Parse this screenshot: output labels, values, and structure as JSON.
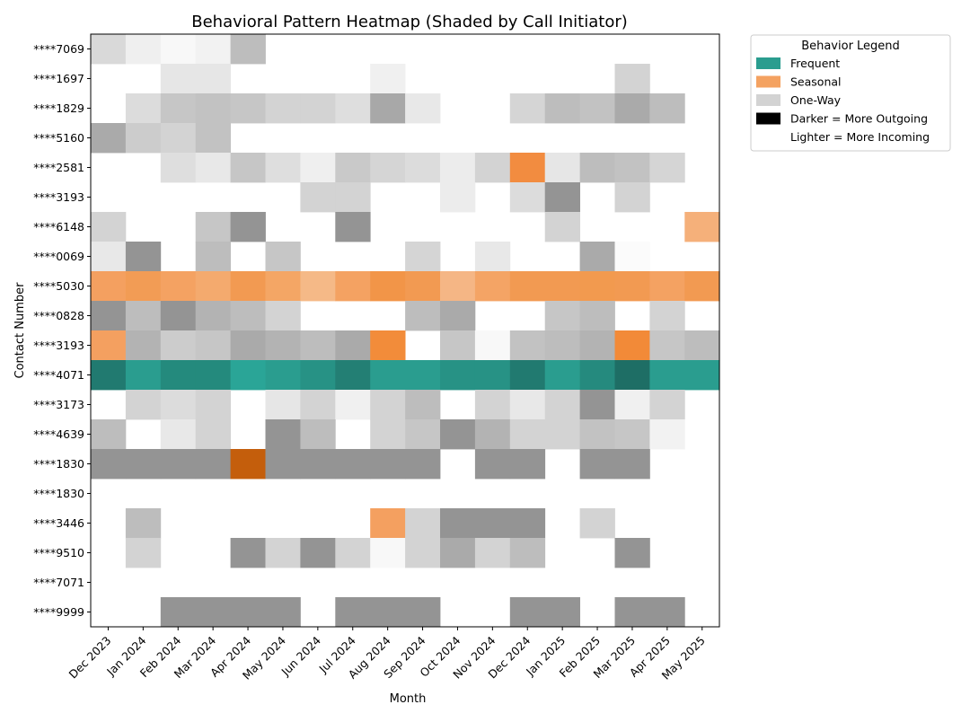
{
  "chart_data": {
    "type": "heatmap",
    "title": "Behavioral Pattern Heatmap (Shaded by Call Initiator)",
    "xlabel": "Month",
    "ylabel": "Contact Number",
    "months": [
      "Dec 2023",
      "Jan 2024",
      "Feb 2024",
      "Mar 2024",
      "Apr 2024",
      "May 2024",
      "Jun 2024",
      "Jul 2024",
      "Aug 2024",
      "Sep 2024",
      "Oct 2024",
      "Nov 2024",
      "Dec 2024",
      "Jan 2025",
      "Feb 2025",
      "Mar 2025",
      "Apr 2025",
      "May 2025"
    ],
    "contacts": [
      "****7069",
      "****1697",
      "****1829",
      "****5160",
      "****2581",
      "****3193",
      "****6148",
      "****0069",
      "****5030",
      "****0828",
      "****3193",
      "****4071",
      "****3173",
      "****4639",
      "****1830",
      "****1830",
      "****3446",
      "****9510",
      "****7071",
      "****9999"
    ],
    "category_colors": {
      "Frequent": "#2a9d8f",
      "Seasonal": "#f4a261",
      "One-Way": "#d3d3d3"
    },
    "legend": {
      "title": "Behavior Legend",
      "placement": "outside-top-right",
      "entries": [
        {
          "label": "Frequent",
          "color": "#2a9d8f"
        },
        {
          "label": "Seasonal",
          "color": "#f4a261"
        },
        {
          "label": "One-Way",
          "color": "#d3d3d3"
        },
        {
          "label": "Darker = More Outgoing",
          "color": "#000000"
        },
        {
          "label": "Lighter = More Incoming",
          "color": "#ffffff"
        }
      ]
    },
    "cells": [
      [
        "#d9d9d9",
        "#efefef",
        "#f8f8f8",
        "#f2f2f2",
        "#bdbdbd",
        null,
        null,
        null,
        null,
        null,
        null,
        null,
        null,
        null,
        null,
        null,
        null,
        null
      ],
      [
        null,
        null,
        "#e6e6e6",
        "#e6e6e6",
        null,
        null,
        null,
        null,
        "#f0f0f0",
        null,
        null,
        null,
        null,
        null,
        null,
        "#d3d3d3",
        null,
        null
      ],
      [
        null,
        "#dcdcdc",
        "#c6c6c6",
        "#c2c2c2",
        "#c6c6c6",
        "#d3d3d3",
        "#d3d3d3",
        "#dedede",
        "#a8a8a8",
        "#e8e8e8",
        null,
        null,
        "#d5d5d5",
        "#bdbdbd",
        "#c2c2c2",
        "#aaaaaa",
        "#bdbdbd",
        null
      ],
      [
        "#aaaaaa",
        "#cccccc",
        "#d3d3d3",
        "#c2c2c2",
        null,
        null,
        null,
        null,
        null,
        null,
        null,
        null,
        null,
        null,
        null,
        null,
        null,
        null
      ],
      [
        null,
        null,
        "#dedede",
        "#e8e8e8",
        "#c6c6c6",
        "#dedede",
        "#efefef",
        "#c9c9c9",
        "#d5d5d5",
        "#dcdcdc",
        "#ececec",
        "#d3d3d3",
        "#f28c40",
        "#e6e6e6",
        "#bdbdbd",
        "#c2c2c2",
        "#d5d5d5",
        null
      ],
      [
        null,
        null,
        null,
        null,
        null,
        null,
        "#d3d3d3",
        "#d3d3d3",
        null,
        null,
        "#ececec",
        null,
        "#dcdcdc",
        "#949494",
        null,
        "#d3d3d3",
        null,
        null
      ],
      [
        "#d3d3d3",
        null,
        null,
        "#c6c6c6",
        "#949494",
        null,
        null,
        "#949494",
        null,
        null,
        null,
        null,
        null,
        "#d3d3d3",
        null,
        null,
        null,
        "#f5b07a"
      ],
      [
        "#e8e8e8",
        "#949494",
        null,
        "#bdbdbd",
        null,
        "#c6c6c6",
        null,
        null,
        null,
        "#d5d5d5",
        null,
        "#e8e8e8",
        null,
        null,
        "#aaaaaa",
        "#fbfbfb",
        null,
        null
      ],
      [
        "#f4a060",
        "#f29c55",
        "#f4a262",
        "#f4aa6e",
        "#f29a52",
        "#f4a665",
        "#f5b987",
        "#f4a262",
        "#f29548",
        "#f29a52",
        "#f5b685",
        "#f4a465",
        "#f29a52",
        "#f29a52",
        "#f29a4f",
        "#f29a52",
        "#f4a262",
        "#f29a52"
      ],
      [
        "#949494",
        "#bdbdbd",
        "#949494",
        "#b3b3b3",
        "#bdbdbd",
        "#d3d3d3",
        null,
        null,
        null,
        "#bdbdbd",
        "#aaaaaa",
        null,
        null,
        "#c6c6c6",
        "#bdbdbd",
        null,
        "#d3d3d3",
        null
      ],
      [
        "#f4a060",
        "#b3b3b3",
        "#cccccc",
        "#c6c6c6",
        "#aaaaaa",
        "#b3b3b3",
        "#bdbdbd",
        "#aaaaaa",
        "#f28c3a",
        null,
        "#c6c6c6",
        "#f8f8f8",
        "#c2c2c2",
        "#bdbdbd",
        "#b3b3b3",
        "#f28a38",
        "#c6c6c6",
        "#bdbdbd"
      ],
      [
        "#217a70",
        "#2a9d8f",
        "#248a7d",
        "#248a7d",
        "#2aa597",
        "#2a9d8f",
        "#279285",
        "#237f74",
        "#2a9d8f",
        "#2a9d8f",
        "#279285",
        "#279285",
        "#217a70",
        "#2a9d8f",
        "#258a7e",
        "#1e6e65",
        "#2a9d8f",
        "#2a9d8f"
      ],
      [
        null,
        "#d3d3d3",
        "#dcdcdc",
        "#d3d3d3",
        null,
        "#e6e6e6",
        "#d3d3d3",
        "#f0f0f0",
        "#d3d3d3",
        "#bdbdbd",
        null,
        "#d3d3d3",
        "#e8e8e8",
        "#d3d3d3",
        "#949494",
        "#f0f0f0",
        "#d3d3d3",
        null
      ],
      [
        "#bdbdbd",
        null,
        "#e8e8e8",
        "#d3d3d3",
        null,
        "#949494",
        "#bdbdbd",
        null,
        "#d3d3d3",
        "#c6c6c6",
        "#949494",
        "#b3b3b3",
        "#d3d3d3",
        "#d3d3d3",
        "#c2c2c2",
        "#c6c6c6",
        "#f2f2f2",
        null
      ],
      [
        "#949494",
        "#949494",
        "#949494",
        "#949494",
        "#c45e0c",
        "#949494",
        "#949494",
        "#949494",
        "#949494",
        "#949494",
        null,
        "#949494",
        "#949494",
        null,
        "#949494",
        "#949494",
        null,
        null
      ],
      [
        null,
        null,
        null,
        null,
        null,
        null,
        null,
        null,
        null,
        null,
        null,
        null,
        null,
        null,
        null,
        null,
        null,
        null
      ],
      [
        null,
        "#bdbdbd",
        null,
        null,
        null,
        null,
        null,
        null,
        "#f4a060",
        "#d3d3d3",
        "#949494",
        "#949494",
        "#949494",
        null,
        "#d3d3d3",
        null,
        null,
        null
      ],
      [
        null,
        "#d3d3d3",
        null,
        null,
        "#949494",
        "#d3d3d3",
        "#949494",
        "#d3d3d3",
        "#f8f8f8",
        "#d3d3d3",
        "#aaaaaa",
        "#d3d3d3",
        "#bdbdbd",
        null,
        null,
        "#949494",
        null,
        null
      ],
      [
        null,
        null,
        null,
        null,
        null,
        null,
        null,
        null,
        null,
        null,
        null,
        null,
        null,
        null,
        null,
        null,
        null,
        null
      ],
      [
        null,
        null,
        "#949494",
        "#949494",
        "#949494",
        "#949494",
        null,
        "#949494",
        "#949494",
        "#949494",
        null,
        null,
        "#949494",
        "#949494",
        null,
        "#949494",
        "#949494",
        null
      ]
    ]
  }
}
